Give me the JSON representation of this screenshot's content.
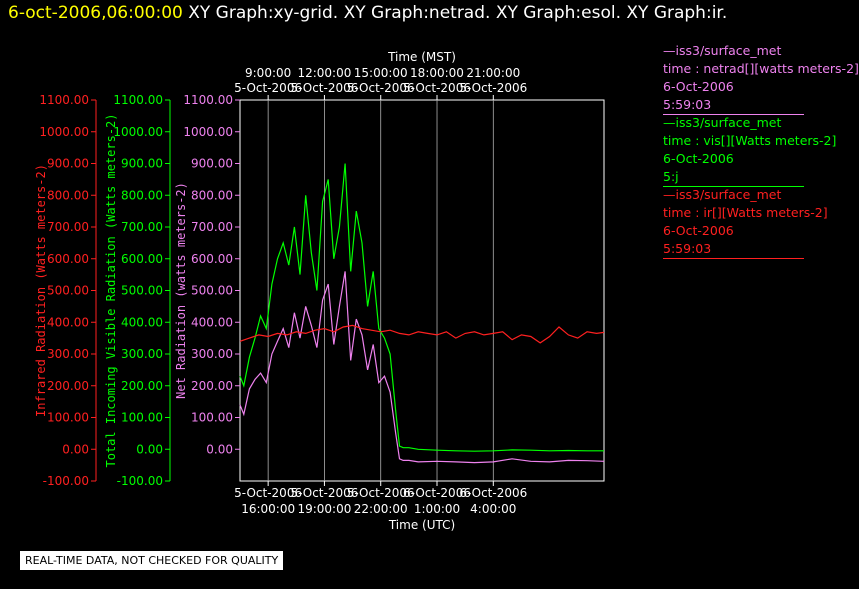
{
  "header": {
    "datetime": "6-oct-2006,06:00:00",
    "titles": "XY Graph:xy-grid.  XY Graph:netrad.  XY Graph:esol.  XY Graph:ir."
  },
  "legend": [
    {
      "id": "netrad",
      "color": "#ee82ee",
      "source": "—iss3/surface_met",
      "var": "time : netrad[][watts meters-2]",
      "date": "6-Oct-2006",
      "time": "5:59:03"
    },
    {
      "id": "vis",
      "color": "#00ff00",
      "source": "—iss3/surface_met",
      "var": "time : vis[][Watts meters-2]",
      "date": "6-Oct-2006",
      "time": "5:j"
    },
    {
      "id": "ir",
      "color": "#ff2020",
      "source": "—iss3/surface_met",
      "var": "time : ir[][Watts meters-2]",
      "date": "6-Oct-2006",
      "time": "5:59:03"
    }
  ],
  "notice": "REAL-TIME DATA, NOT CHECKED FOR QUALITY",
  "chart_data": {
    "type": "line",
    "x_top_label": "Time (MST)",
    "x_bottom_label": "Time (UTC)",
    "x_range_utc_hours": [
      14.5,
      33.9
    ],
    "top_ticks": [
      {
        "utc_hour": 16,
        "time": "9:00:00",
        "date": "5-Oct-2006"
      },
      {
        "utc_hour": 19,
        "time": "12:00:00",
        "date": "5-Oct-2006"
      },
      {
        "utc_hour": 22,
        "time": "15:00:00",
        "date": "5-Oct-2006"
      },
      {
        "utc_hour": 25,
        "time": "18:00:00",
        "date": "5-Oct-2006"
      },
      {
        "utc_hour": 28,
        "time": "21:00:00",
        "date": "5-Oct-2006"
      }
    ],
    "bottom_ticks": [
      {
        "utc_hour": 16,
        "date": "5-Oct-2006",
        "time": "16:00:00"
      },
      {
        "utc_hour": 19,
        "date": "5-Oct-2006",
        "time": "19:00:00"
      },
      {
        "utc_hour": 22,
        "date": "5-Oct-2006",
        "time": "22:00:00"
      },
      {
        "utc_hour": 25,
        "date": "6-Oct-2006",
        "time": "1:00:00"
      },
      {
        "utc_hour": 28,
        "date": "6-Oct-2006",
        "time": "4:00:00"
      }
    ],
    "y_axes": [
      {
        "id": "ir",
        "label": "Infrared Radiation (Watts meters-2)",
        "color": "#ff2020",
        "range": [
          -100,
          1100
        ],
        "ticks": [
          "-100.00",
          "0.00",
          "100.00",
          "200.00",
          "300.00",
          "400.00",
          "500.00",
          "600.00",
          "700.00",
          "800.00",
          "900.00",
          "1000.00",
          "1100.00"
        ]
      },
      {
        "id": "vis",
        "label": "Total Incoming Visible Radiation (Watts meters-2)",
        "color": "#00ff00",
        "range": [
          -100,
          1100
        ],
        "ticks": [
          "-100.00",
          "0.00",
          "100.00",
          "200.00",
          "300.00",
          "400.00",
          "500.00",
          "600.00",
          "700.00",
          "800.00",
          "900.00",
          "1000.00",
          "1100.00"
        ]
      },
      {
        "id": "netrad",
        "label": "Net Radiation (watts meters-2)",
        "color": "#ee82ee",
        "range": [
          -100,
          1100
        ],
        "ticks": [
          "0.00",
          "100.00",
          "200.00",
          "300.00",
          "400.00",
          "500.00",
          "600.00",
          "700.00",
          "800.00",
          "900.00",
          "1000.00",
          "1100.00"
        ]
      }
    ],
    "series": [
      {
        "name": "vis",
        "color": "#00ff00",
        "x": [
          14.5,
          14.7,
          15.0,
          15.3,
          15.6,
          15.9,
          16.2,
          16.5,
          16.8,
          17.1,
          17.4,
          17.7,
          18.0,
          18.3,
          18.6,
          18.9,
          19.2,
          19.5,
          19.8,
          20.1,
          20.4,
          20.7,
          21.0,
          21.3,
          21.6,
          21.9,
          22.2,
          22.5,
          22.8,
          23.0,
          23.2,
          23.5,
          24.0,
          25.0,
          26.0,
          27.0,
          28.0,
          29.0,
          30.0,
          31.0,
          32.0,
          33.0,
          33.9
        ],
        "y": [
          230,
          200,
          290,
          350,
          420,
          380,
          520,
          600,
          650,
          580,
          700,
          550,
          800,
          620,
          500,
          780,
          850,
          600,
          700,
          900,
          560,
          750,
          650,
          450,
          560,
          380,
          350,
          300,
          120,
          10,
          5,
          5,
          0,
          -3,
          -5,
          -6,
          -5,
          -2,
          -3,
          -5,
          -4,
          -5,
          -5
        ]
      },
      {
        "name": "netrad",
        "color": "#ee82ee",
        "x": [
          14.5,
          14.7,
          15.0,
          15.3,
          15.6,
          15.9,
          16.2,
          16.5,
          16.8,
          17.1,
          17.4,
          17.7,
          18.0,
          18.3,
          18.6,
          18.9,
          19.2,
          19.5,
          19.8,
          20.1,
          20.4,
          20.7,
          21.0,
          21.3,
          21.6,
          21.9,
          22.2,
          22.5,
          22.8,
          23.0,
          23.2,
          23.5,
          24.0,
          25.0,
          26.0,
          27.0,
          28.0,
          29.0,
          30.0,
          31.0,
          32.0,
          33.0,
          33.9
        ],
        "y": [
          140,
          110,
          190,
          220,
          240,
          210,
          300,
          340,
          380,
          320,
          430,
          350,
          450,
          390,
          320,
          470,
          520,
          330,
          450,
          560,
          280,
          410,
          360,
          250,
          330,
          210,
          230,
          180,
          50,
          -30,
          -35,
          -35,
          -40,
          -38,
          -40,
          -42,
          -40,
          -30,
          -38,
          -40,
          -35,
          -36,
          -38
        ]
      },
      {
        "name": "ir",
        "color": "#ff2020",
        "x": [
          14.5,
          15.0,
          15.5,
          16.0,
          16.5,
          17.0,
          17.5,
          18.0,
          18.5,
          19.0,
          19.5,
          20.0,
          20.5,
          21.0,
          21.5,
          22.0,
          22.5,
          23.0,
          23.5,
          24.0,
          24.5,
          25.0,
          25.5,
          26.0,
          26.5,
          27.0,
          27.5,
          28.0,
          28.5,
          29.0,
          29.5,
          30.0,
          30.5,
          31.0,
          31.5,
          32.0,
          32.5,
          33.0,
          33.5,
          33.9
        ],
        "y": [
          340,
          350,
          360,
          355,
          365,
          360,
          370,
          365,
          375,
          380,
          370,
          385,
          390,
          380,
          375,
          370,
          375,
          365,
          360,
          370,
          365,
          360,
          370,
          350,
          365,
          370,
          360,
          365,
          370,
          345,
          360,
          355,
          335,
          355,
          385,
          360,
          350,
          370,
          365,
          368
        ]
      }
    ]
  }
}
